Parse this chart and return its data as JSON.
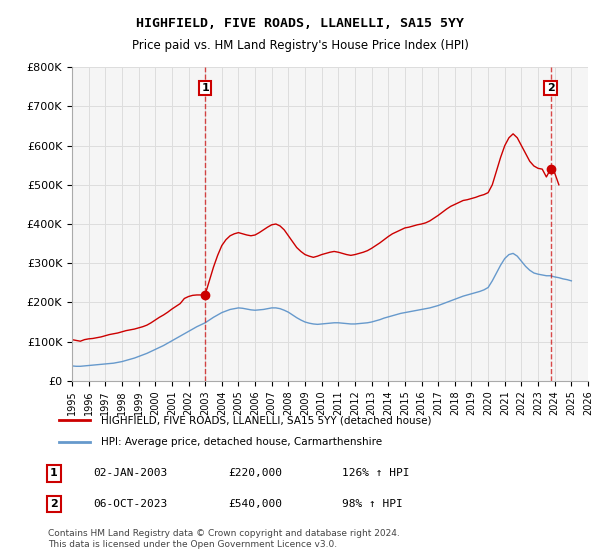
{
  "title": "HIGHFIELD, FIVE ROADS, LLANELLI, SA15 5YY",
  "subtitle": "Price paid vs. HM Land Registry's House Price Index (HPI)",
  "ylim": [
    0,
    800000
  ],
  "yticks": [
    0,
    100000,
    200000,
    300000,
    400000,
    500000,
    600000,
    700000,
    800000
  ],
  "ytick_labels": [
    "£0",
    "£100K",
    "£200K",
    "£300K",
    "£400K",
    "£500K",
    "£600K",
    "£700K",
    "£800K"
  ],
  "xlim_start": 1995,
  "xlim_end": 2026,
  "xticks": [
    1995,
    1996,
    1997,
    1998,
    1999,
    2000,
    2001,
    2002,
    2003,
    2004,
    2005,
    2006,
    2007,
    2008,
    2009,
    2010,
    2011,
    2012,
    2013,
    2014,
    2015,
    2016,
    2017,
    2018,
    2019,
    2020,
    2021,
    2022,
    2023,
    2024,
    2025,
    2026
  ],
  "red_line_color": "#cc0000",
  "blue_line_color": "#6699cc",
  "grid_color": "#dddddd",
  "bg_color": "#f5f5f5",
  "marker1_x": 2003.0,
  "marker1_y": 220000,
  "marker2_x": 2023.75,
  "marker2_y": 540000,
  "legend_red_label": "HIGHFIELD, FIVE ROADS, LLANELLI, SA15 5YY (detached house)",
  "legend_blue_label": "HPI: Average price, detached house, Carmarthenshire",
  "table_row1": "1    02-JAN-2003         £220,000         126% ↑ HPI",
  "table_row2": "2    06-OCT-2023         £540,000           98% ↑ HPI",
  "footer": "Contains HM Land Registry data © Crown copyright and database right 2024.\nThis data is licensed under the Open Government Licence v3.0.",
  "red_x": [
    1995.0,
    1995.25,
    1995.5,
    1995.75,
    1996.0,
    1996.25,
    1996.5,
    1996.75,
    1997.0,
    1997.25,
    1997.5,
    1997.75,
    1998.0,
    1998.25,
    1998.5,
    1998.75,
    1999.0,
    1999.25,
    1999.5,
    1999.75,
    2000.0,
    2000.25,
    2000.5,
    2000.75,
    2001.0,
    2001.25,
    2001.5,
    2001.75,
    2002.0,
    2002.25,
    2002.5,
    2002.75,
    2003.0,
    2003.25,
    2003.5,
    2003.75,
    2004.0,
    2004.25,
    2004.5,
    2004.75,
    2005.0,
    2005.25,
    2005.5,
    2005.75,
    2006.0,
    2006.25,
    2006.5,
    2006.75,
    2007.0,
    2007.25,
    2007.5,
    2007.75,
    2008.0,
    2008.25,
    2008.5,
    2008.75,
    2009.0,
    2009.25,
    2009.5,
    2009.75,
    2010.0,
    2010.25,
    2010.5,
    2010.75,
    2011.0,
    2011.25,
    2011.5,
    2011.75,
    2012.0,
    2012.25,
    2012.5,
    2012.75,
    2013.0,
    2013.25,
    2013.5,
    2013.75,
    2014.0,
    2014.25,
    2014.5,
    2014.75,
    2015.0,
    2015.25,
    2015.5,
    2015.75,
    2016.0,
    2016.25,
    2016.5,
    2016.75,
    2017.0,
    2017.25,
    2017.5,
    2017.75,
    2018.0,
    2018.25,
    2018.5,
    2018.75,
    2019.0,
    2019.25,
    2019.5,
    2019.75,
    2020.0,
    2020.25,
    2020.5,
    2020.75,
    2021.0,
    2021.25,
    2021.5,
    2021.75,
    2022.0,
    2022.25,
    2022.5,
    2022.75,
    2023.0,
    2023.25,
    2023.5,
    2023.75,
    2024.0,
    2024.25
  ],
  "red_y": [
    105000,
    103000,
    101000,
    105000,
    107000,
    108000,
    110000,
    112000,
    115000,
    118000,
    120000,
    122000,
    125000,
    128000,
    130000,
    132000,
    135000,
    138000,
    142000,
    148000,
    155000,
    162000,
    168000,
    175000,
    183000,
    190000,
    197000,
    210000,
    215000,
    218000,
    219000,
    219000,
    220000,
    255000,
    290000,
    320000,
    345000,
    360000,
    370000,
    375000,
    378000,
    375000,
    372000,
    370000,
    372000,
    378000,
    385000,
    392000,
    398000,
    400000,
    395000,
    385000,
    370000,
    355000,
    340000,
    330000,
    322000,
    318000,
    315000,
    318000,
    322000,
    325000,
    328000,
    330000,
    328000,
    325000,
    322000,
    320000,
    322000,
    325000,
    328000,
    332000,
    338000,
    345000,
    352000,
    360000,
    368000,
    375000,
    380000,
    385000,
    390000,
    392000,
    395000,
    398000,
    400000,
    403000,
    408000,
    415000,
    422000,
    430000,
    438000,
    445000,
    450000,
    455000,
    460000,
    462000,
    465000,
    468000,
    472000,
    475000,
    480000,
    500000,
    535000,
    570000,
    600000,
    620000,
    630000,
    620000,
    600000,
    580000,
    560000,
    548000,
    542000,
    540000,
    520000,
    540000,
    530000,
    500000
  ],
  "blue_x": [
    1995.0,
    1995.25,
    1995.5,
    1995.75,
    1996.0,
    1996.25,
    1996.5,
    1996.75,
    1997.0,
    1997.25,
    1997.5,
    1997.75,
    1998.0,
    1998.25,
    1998.5,
    1998.75,
    1999.0,
    1999.25,
    1999.5,
    1999.75,
    2000.0,
    2000.25,
    2000.5,
    2000.75,
    2001.0,
    2001.25,
    2001.5,
    2001.75,
    2002.0,
    2002.25,
    2002.5,
    2002.75,
    2003.0,
    2003.25,
    2003.5,
    2003.75,
    2004.0,
    2004.25,
    2004.5,
    2004.75,
    2005.0,
    2005.25,
    2005.5,
    2005.75,
    2006.0,
    2006.25,
    2006.5,
    2006.75,
    2007.0,
    2007.25,
    2007.5,
    2007.75,
    2008.0,
    2008.25,
    2008.5,
    2008.75,
    2009.0,
    2009.25,
    2009.5,
    2009.75,
    2010.0,
    2010.25,
    2010.5,
    2010.75,
    2011.0,
    2011.25,
    2011.5,
    2011.75,
    2012.0,
    2012.25,
    2012.5,
    2012.75,
    2013.0,
    2013.25,
    2013.5,
    2013.75,
    2014.0,
    2014.25,
    2014.5,
    2014.75,
    2015.0,
    2015.25,
    2015.5,
    2015.75,
    2016.0,
    2016.25,
    2016.5,
    2016.75,
    2017.0,
    2017.25,
    2017.5,
    2017.75,
    2018.0,
    2018.25,
    2018.5,
    2018.75,
    2019.0,
    2019.25,
    2019.5,
    2019.75,
    2020.0,
    2020.25,
    2020.5,
    2020.75,
    2021.0,
    2021.25,
    2021.5,
    2021.75,
    2022.0,
    2022.25,
    2022.5,
    2022.75,
    2023.0,
    2023.25,
    2023.5,
    2023.75,
    2024.0,
    2024.25,
    2024.5,
    2024.75,
    2025.0
  ],
  "blue_y": [
    38000,
    37000,
    37000,
    38000,
    39000,
    40000,
    41000,
    42000,
    43000,
    44000,
    45000,
    47000,
    49000,
    52000,
    55000,
    58000,
    62000,
    66000,
    70000,
    75000,
    80000,
    85000,
    90000,
    96000,
    102000,
    108000,
    114000,
    120000,
    126000,
    132000,
    138000,
    143000,
    148000,
    155000,
    162000,
    168000,
    174000,
    178000,
    182000,
    184000,
    186000,
    185000,
    183000,
    181000,
    180000,
    181000,
    182000,
    184000,
    186000,
    186000,
    184000,
    180000,
    175000,
    168000,
    161000,
    155000,
    150000,
    147000,
    145000,
    144000,
    145000,
    146000,
    147000,
    148000,
    148000,
    147000,
    146000,
    145000,
    145000,
    146000,
    147000,
    148000,
    150000,
    153000,
    156000,
    160000,
    163000,
    166000,
    169000,
    172000,
    174000,
    176000,
    178000,
    180000,
    182000,
    184000,
    186000,
    189000,
    192000,
    196000,
    200000,
    204000,
    208000,
    212000,
    216000,
    219000,
    222000,
    225000,
    228000,
    232000,
    238000,
    255000,
    275000,
    295000,
    312000,
    322000,
    325000,
    318000,
    305000,
    292000,
    282000,
    275000,
    272000,
    270000,
    268000,
    268000,
    265000,
    263000,
    260000,
    258000,
    255000
  ]
}
